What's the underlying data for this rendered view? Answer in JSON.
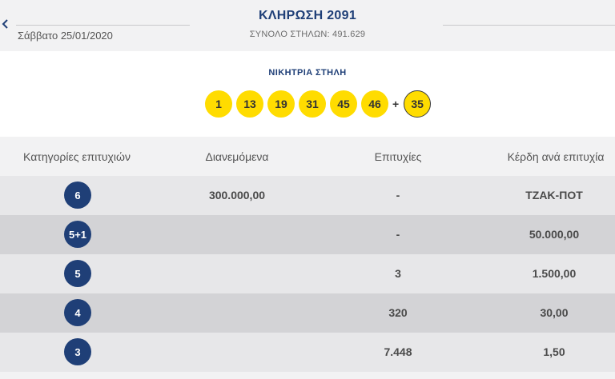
{
  "header": {
    "back_icon": "chevron-left-icon",
    "date": "Σάββατο 25/01/2020",
    "title": "ΚΛΗΡΩΣΗ 2091",
    "subtitle": "ΣΥΝΟΛΟ ΣΤΗΛΩΝ: 491.629"
  },
  "winning": {
    "label": "ΝΙΚΗΤΡΙΑ ΣΤΗΛΗ",
    "numbers": [
      "1",
      "13",
      "19",
      "31",
      "45",
      "46"
    ],
    "plus": "+",
    "joker": "35"
  },
  "table": {
    "headers": [
      "Κατηγορίες επιτυχιών",
      "Διανεμόμενα",
      "Επιτυχίες",
      "Κέρδη ανά επιτυχία"
    ],
    "rows": [
      {
        "category": "6",
        "distributed": "300.000,00",
        "winners": "-",
        "prize": "ΤΖΑΚ-ΠΟΤ"
      },
      {
        "category": "5+1",
        "distributed": "",
        "winners": "-",
        "prize": "50.000,00"
      },
      {
        "category": "5",
        "distributed": "",
        "winners": "3",
        "prize": "1.500,00"
      },
      {
        "category": "4",
        "distributed": "",
        "winners": "320",
        "prize": "30,00"
      },
      {
        "category": "3",
        "distributed": "",
        "winners": "7.448",
        "prize": "1,50"
      }
    ]
  },
  "colors": {
    "navy": "#1f3f77",
    "ball_yellow": "#ffdc00",
    "row_light": "#e7e7e9",
    "row_dark": "#d3d3d6"
  }
}
